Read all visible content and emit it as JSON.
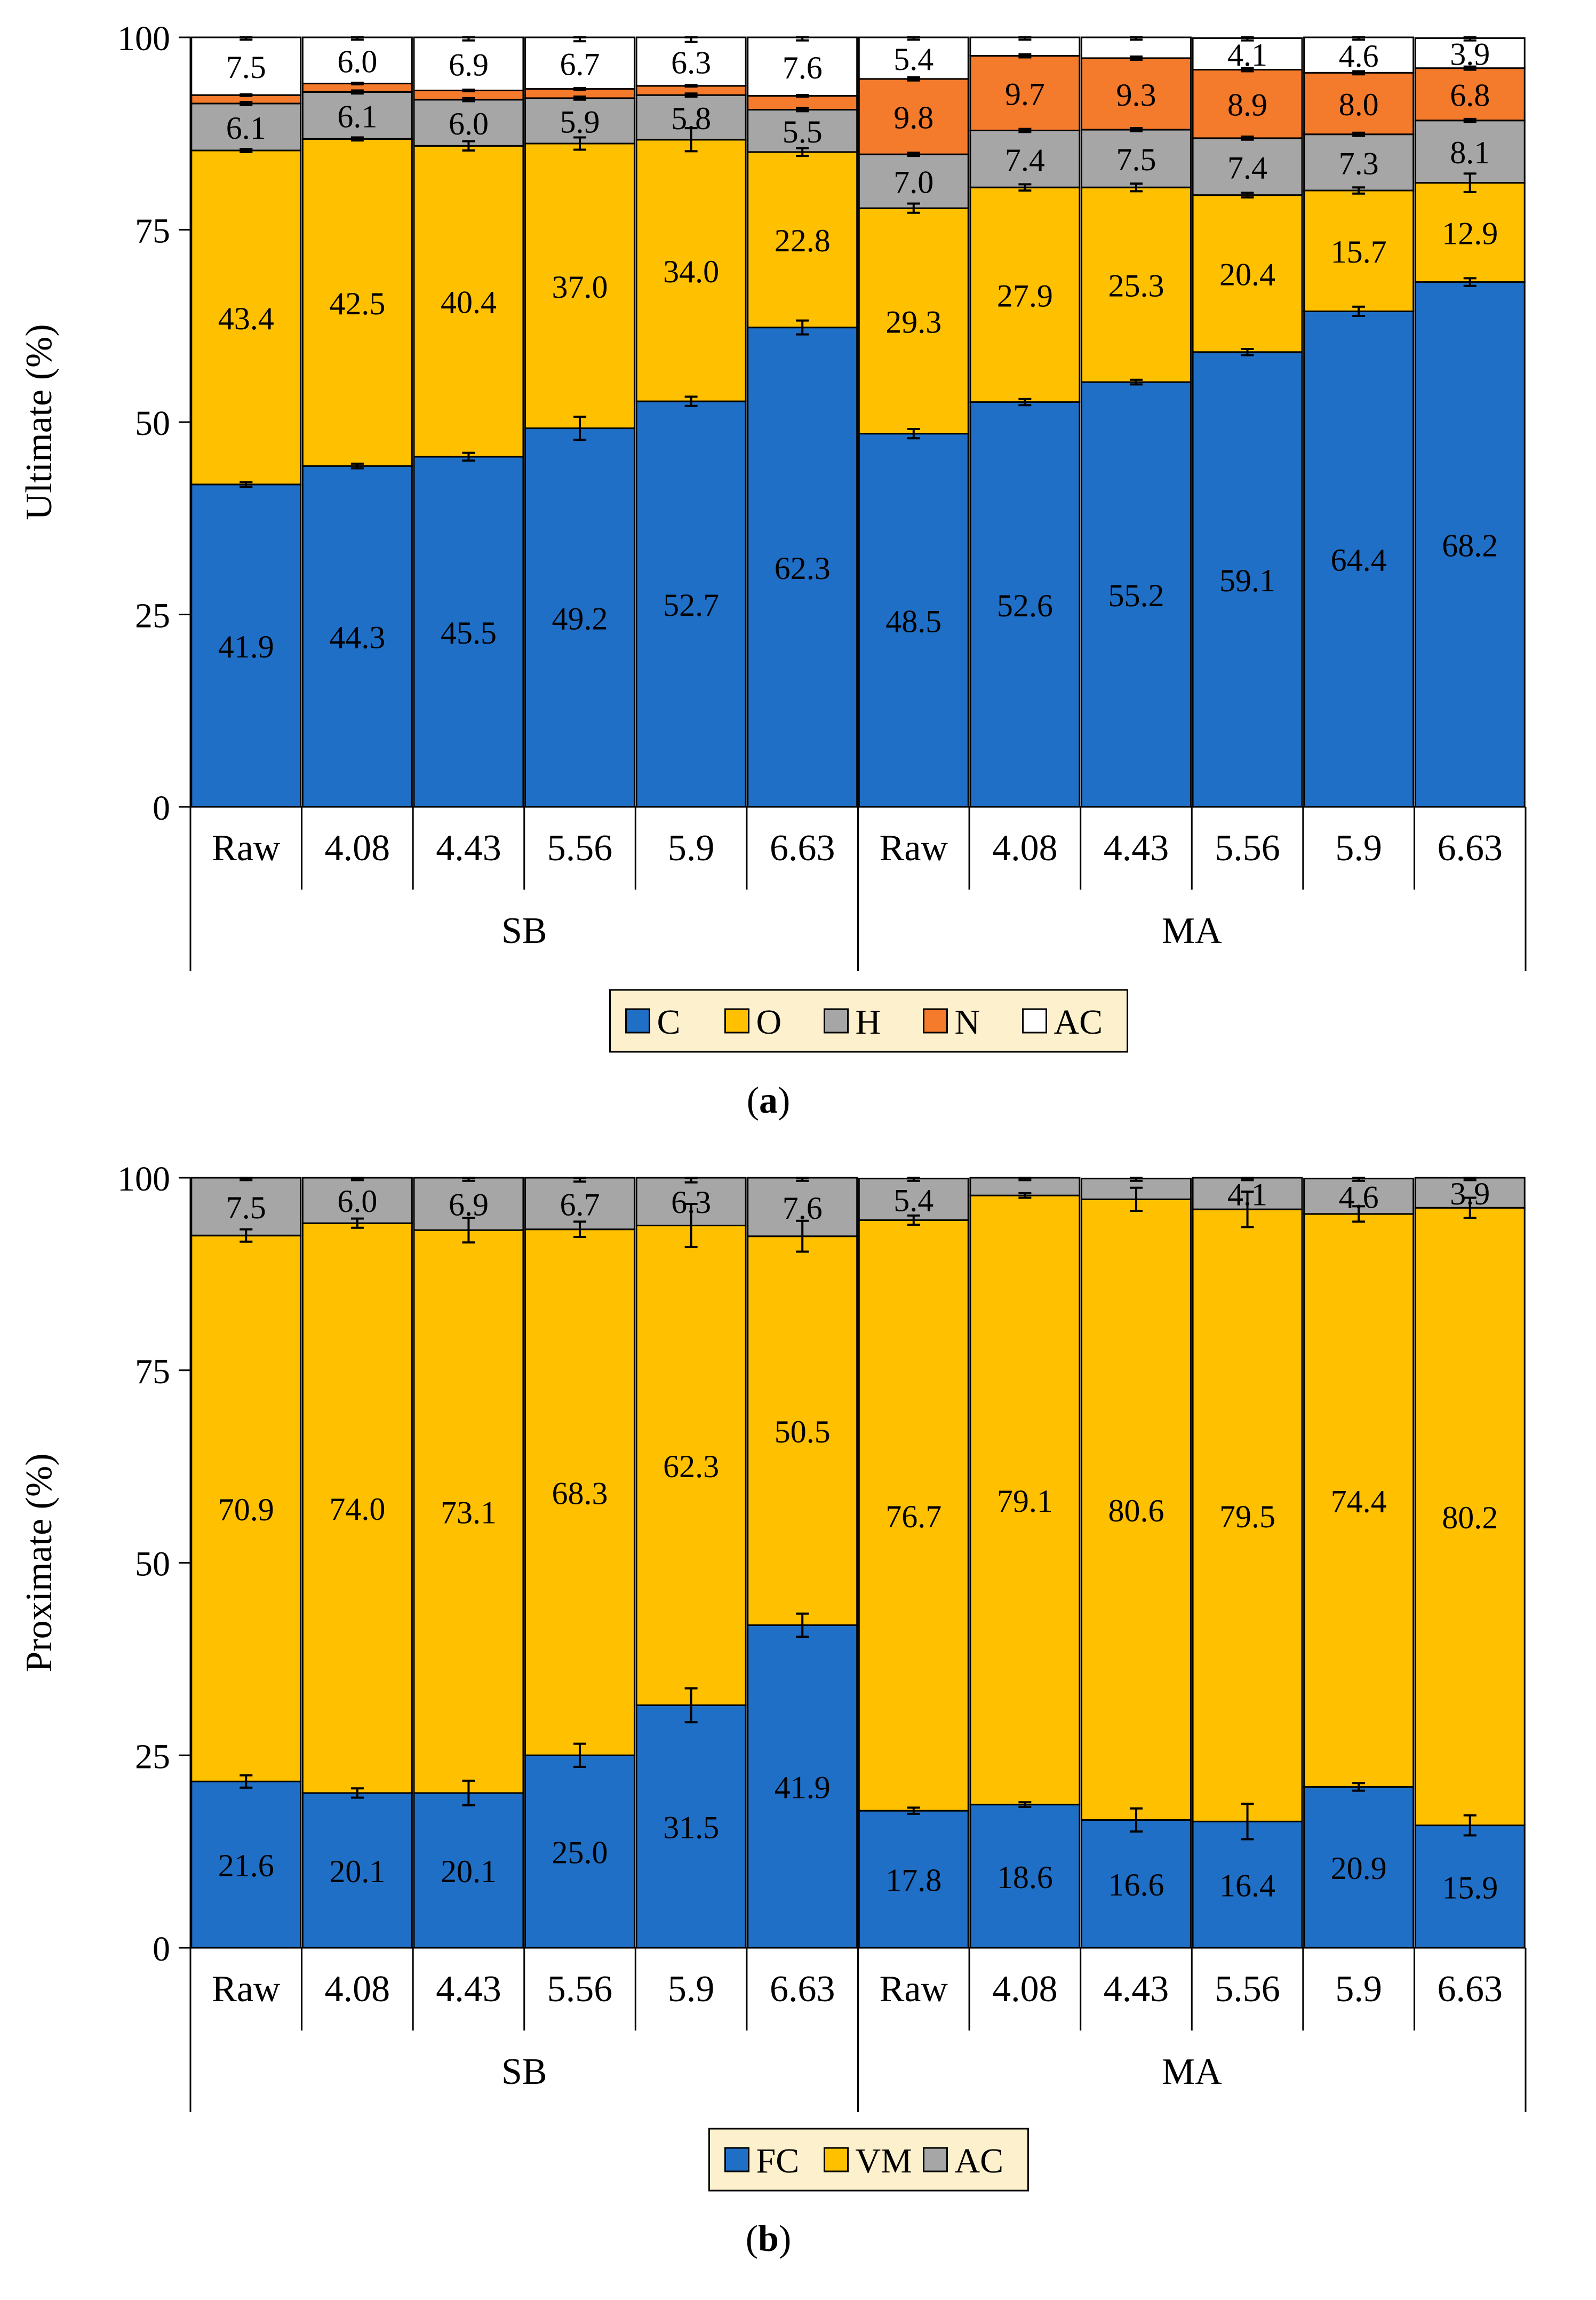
{
  "colors": {
    "C": "#1f6fc6",
    "O": "#ffc000",
    "H": "#a6a6a6",
    "N": "#f47a2c",
    "AC_ult": "#ffffff",
    "FC": "#1f6fc6",
    "VM": "#ffc000",
    "AC_prox": "#a6a6a6",
    "legend_bg": "#fdf0cc",
    "axis": "#000000"
  },
  "chart_data": [
    {
      "id": "a",
      "type": "bar",
      "stacked": true,
      "panel_label_prefix": "(",
      "panel_label": "a",
      "panel_label_suffix": ")",
      "ylabel": "Ultimate (%)",
      "ylim": [
        0,
        100
      ],
      "yticks": [
        "0",
        "25",
        "50",
        "75",
        "100"
      ],
      "categories": [
        "Raw",
        "4.08",
        "4.43",
        "5.56",
        "5.9",
        "6.63",
        "Raw",
        "4.08",
        "4.43",
        "5.56",
        "5.9",
        "6.63"
      ],
      "groups": [
        {
          "label": "SB",
          "count": 6
        },
        {
          "label": "MA",
          "count": 6
        }
      ],
      "series": [
        {
          "name": "C",
          "color_key": "C",
          "values": [
            41.9,
            44.3,
            45.5,
            49.2,
            52.7,
            62.3,
            48.5,
            52.6,
            55.2,
            59.1,
            64.4,
            68.2
          ],
          "labels": [
            "41.9",
            "44.3",
            "45.5",
            "49.2",
            "52.7",
            "62.3",
            "48.5",
            "52.6",
            "55.2",
            "59.1",
            "64.4",
            "68.2"
          ],
          "errors": [
            0.3,
            0.3,
            0.5,
            1.5,
            0.6,
            0.9,
            0.6,
            0.4,
            0.3,
            0.4,
            0.6,
            0.5
          ]
        },
        {
          "name": "O",
          "color_key": "O",
          "values": [
            43.4,
            42.5,
            40.4,
            37.0,
            34.0,
            22.8,
            29.3,
            27.9,
            25.3,
            20.4,
            15.7,
            12.9
          ],
          "labels": [
            "43.4",
            "42.5",
            "40.4",
            "37.0",
            "34.0",
            "22.8",
            "29.3",
            "27.9",
            "25.3",
            "20.4",
            "15.7",
            "12.9"
          ],
          "errors": [
            0.2,
            0.2,
            0.6,
            0.8,
            1.5,
            0.5,
            0.6,
            0.4,
            0.5,
            0.3,
            0.4,
            1.2
          ]
        },
        {
          "name": "H",
          "color_key": "H",
          "values": [
            6.1,
            6.1,
            6.0,
            5.9,
            5.8,
            5.5,
            7.0,
            7.4,
            7.5,
            7.4,
            7.3,
            8.1
          ],
          "labels": [
            "6.1",
            "6.1",
            "6.0",
            "5.9",
            "5.8",
            "5.5",
            "7.0",
            "7.4",
            "7.5",
            "7.4",
            "7.3",
            "8.1"
          ],
          "errors": [
            0.2,
            0.2,
            0.2,
            0.2,
            0.2,
            0.2,
            0.2,
            0.2,
            0.2,
            0.2,
            0.2,
            0.2
          ]
        },
        {
          "name": "N",
          "color_key": "N",
          "values": [
            1.1,
            1.1,
            1.2,
            1.2,
            1.2,
            1.8,
            9.8,
            9.7,
            9.3,
            8.9,
            8.0,
            6.8
          ],
          "labels": [
            "",
            "",
            "",
            "",
            "",
            "",
            "9.8",
            "9.7",
            "9.3",
            "8.9",
            "8.0",
            "6.8"
          ],
          "errors": [
            0.1,
            0.1,
            0.1,
            0.1,
            0.1,
            0.1,
            0.2,
            0.2,
            0.2,
            0.2,
            0.2,
            0.2
          ]
        },
        {
          "name": "AC",
          "color_key": "AC_ult",
          "values": [
            7.5,
            6.0,
            6.9,
            6.7,
            6.3,
            7.6,
            5.4,
            2.4,
            2.7,
            4.1,
            4.6,
            3.9
          ],
          "labels": [
            "7.5",
            "6.0",
            "6.9",
            "6.7",
            "6.3",
            "7.6",
            "5.4",
            "",
            "",
            "4.1",
            "4.6",
            "3.9"
          ],
          "errors": [
            0.3,
            0.3,
            0.4,
            0.5,
            0.6,
            0.4,
            0.3,
            0.3,
            0.3,
            0.3,
            0.3,
            0.3
          ]
        }
      ],
      "legend": [
        {
          "name": "C",
          "color_key": "C"
        },
        {
          "name": "O",
          "color_key": "O"
        },
        {
          "name": "H",
          "color_key": "H"
        },
        {
          "name": "N",
          "color_key": "N"
        },
        {
          "name": "AC",
          "color_key": "AC_ult"
        }
      ],
      "legend_position": "bottom-center",
      "grid": false
    },
    {
      "id": "b",
      "type": "bar",
      "stacked": true,
      "panel_label_prefix": "(",
      "panel_label": "b",
      "panel_label_suffix": ")",
      "ylabel": "Proximate (%)",
      "ylim": [
        0,
        100
      ],
      "yticks": [
        "0",
        "25",
        "50",
        "75",
        "100"
      ],
      "categories": [
        "Raw",
        "4.08",
        "4.43",
        "5.56",
        "5.9",
        "6.63",
        "Raw",
        "4.08",
        "4.43",
        "5.56",
        "5.9",
        "6.63"
      ],
      "groups": [
        {
          "label": "SB",
          "count": 6
        },
        {
          "label": "MA",
          "count": 6
        }
      ],
      "series": [
        {
          "name": "FC",
          "color_key": "FC",
          "values": [
            21.6,
            20.1,
            20.1,
            25.0,
            31.5,
            41.9,
            17.8,
            18.6,
            16.6,
            16.4,
            20.9,
            15.9
          ],
          "labels": [
            "21.6",
            "20.1",
            "20.1",
            "25.0",
            "31.5",
            "41.9",
            "17.8",
            "18.6",
            "16.6",
            "16.4",
            "20.9",
            "15.9"
          ],
          "errors": [
            0.8,
            0.6,
            1.6,
            1.5,
            2.2,
            1.5,
            0.4,
            0.3,
            1.5,
            2.3,
            0.5,
            1.3
          ]
        },
        {
          "name": "VM",
          "color_key": "VM",
          "values": [
            70.9,
            74.0,
            73.1,
            68.3,
            62.3,
            50.5,
            76.7,
            79.1,
            80.6,
            79.5,
            74.4,
            80.2
          ],
          "labels": [
            "70.9",
            "74.0",
            "73.1",
            "68.3",
            "62.3",
            "50.5",
            "76.7",
            "79.1",
            "80.6",
            "79.5",
            "74.4",
            "80.2"
          ],
          "errors": [
            0.8,
            0.6,
            1.6,
            1.0,
            2.8,
            2.0,
            0.6,
            0.3,
            1.5,
            2.3,
            1.0,
            1.3
          ]
        },
        {
          "name": "AC",
          "color_key": "AC_prox",
          "values": [
            7.5,
            6.0,
            6.9,
            6.7,
            6.3,
            7.6,
            5.4,
            2.4,
            2.7,
            4.1,
            4.6,
            3.9
          ],
          "labels": [
            "7.5",
            "6.0",
            "6.9",
            "6.7",
            "6.3",
            "7.6",
            "5.4",
            "",
            "",
            "4.1",
            "4.6",
            "3.9"
          ],
          "errors": [
            0.3,
            0.3,
            0.4,
            0.5,
            0.6,
            0.4,
            0.3,
            0.3,
            0.3,
            0.3,
            0.3,
            0.3
          ]
        }
      ],
      "legend": [
        {
          "name": "FC",
          "color_key": "FC"
        },
        {
          "name": "VM",
          "color_key": "VM"
        },
        {
          "name": "AC",
          "color_key": "AC_prox"
        }
      ],
      "legend_position": "bottom-center",
      "grid": false
    }
  ]
}
